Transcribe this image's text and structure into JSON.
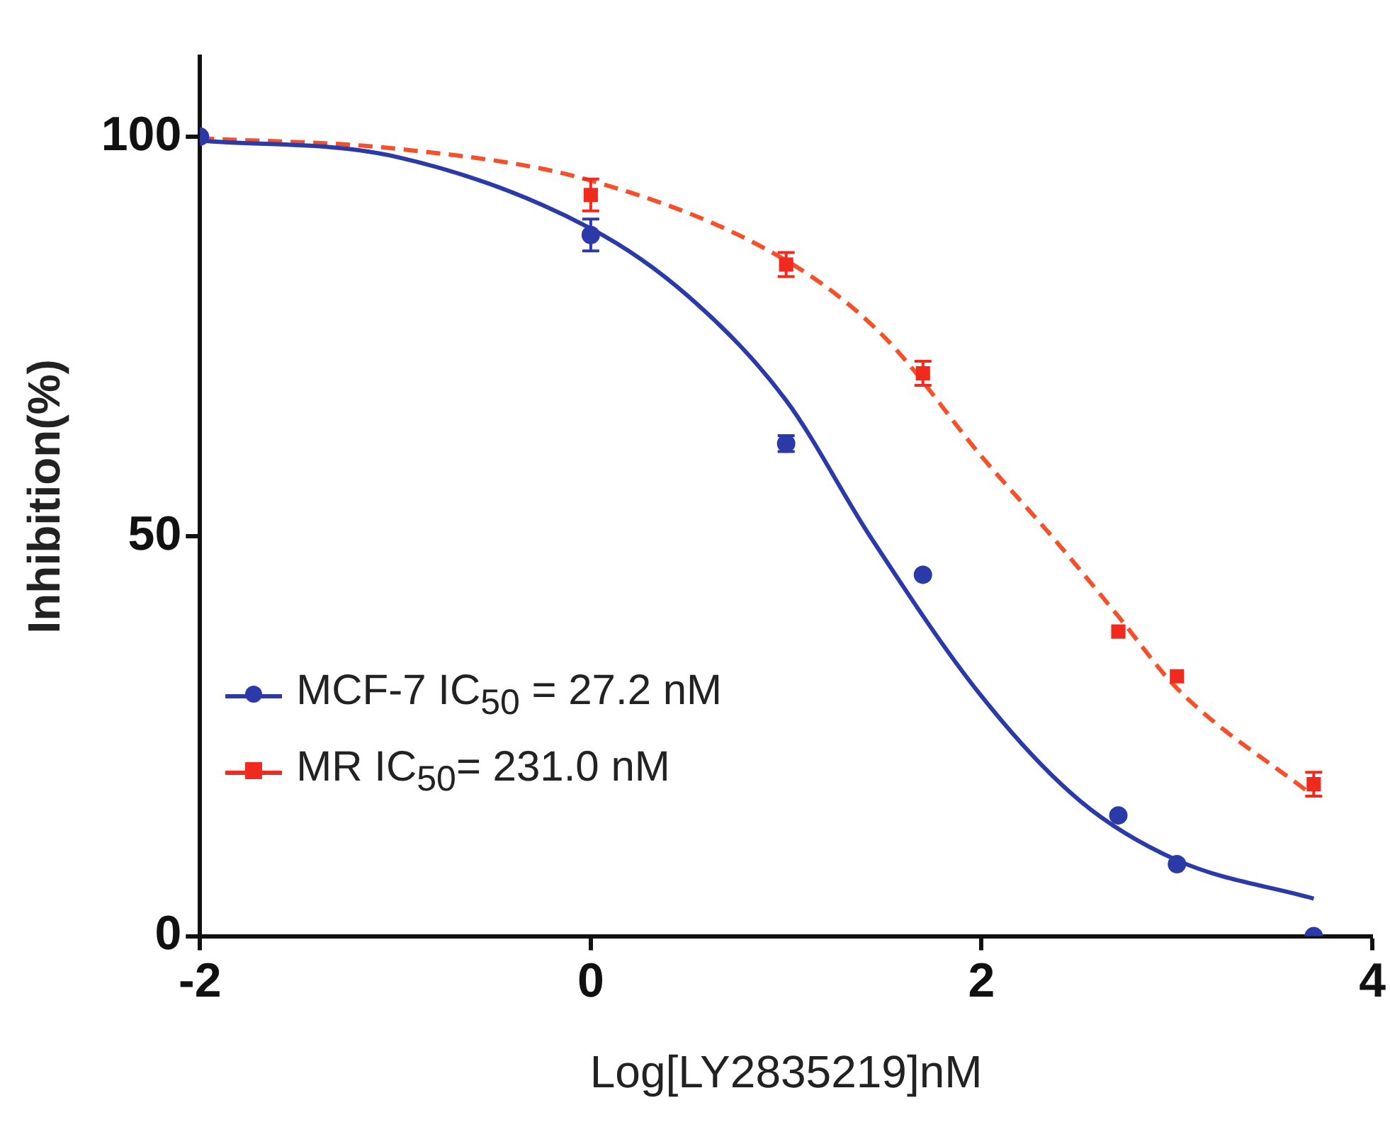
{
  "chart_data": {
    "type": "scatter",
    "xlabel": "Log[LY2835219]nM",
    "ylabel": "Inhibition(%)",
    "xlim": [
      -2,
      4
    ],
    "xticks": [
      -2,
      0,
      2,
      4
    ],
    "ylim": [
      0,
      110
    ],
    "yticks": [
      0,
      50,
      100
    ],
    "grid": false,
    "legend": "bottom left",
    "series": [
      {
        "name": "MCF-7 IC$_{50}$ = 27.2 nM",
        "type": "scatter",
        "color": "#2b3aa8",
        "marker": "circle",
        "x": [
          -2,
          0,
          1,
          1.7,
          2.7,
          3,
          3.7
        ],
        "values": [
          100,
          87.7,
          61.6,
          45.2,
          15.1,
          9,
          0
        ],
        "errors": [
          null,
          2,
          1,
          null,
          null,
          null,
          null
        ]
      },
      {
        "name": "MR IC$_{50}$= 231.0 nM",
        "type": "scatter",
        "color": "#f02a1e",
        "marker": "square",
        "x": [
          0,
          1,
          1.7,
          2.7,
          3,
          3.7
        ],
        "values": [
          92.7,
          84,
          70.4,
          38.1,
          32.5,
          19
        ],
        "errors": [
          2,
          1.5,
          1.5,
          null,
          null,
          1.5
        ]
      },
      {
        "type": "line",
        "color": "#2b3aa8",
        "line_style": "solid",
        "marker": "none",
        "x": [
          -2,
          -1,
          0,
          0.5,
          1,
          1.43,
          2,
          2.5,
          3,
          3.7
        ],
        "values": [
          99.5,
          97.5,
          88.5,
          80,
          67,
          50,
          30,
          17,
          9.5,
          4.7
        ]
      },
      {
        "type": "line",
        "color": "#f5502a",
        "line_style": "dashed",
        "marker": "none",
        "x": [
          -2,
          -1,
          0,
          1,
          1.5,
          2,
          2.36,
          2.7,
          3,
          3.7
        ],
        "values": [
          99.8,
          98.5,
          94.5,
          84.5,
          75,
          60,
          50,
          40,
          31,
          17.5
        ]
      }
    ]
  }
}
